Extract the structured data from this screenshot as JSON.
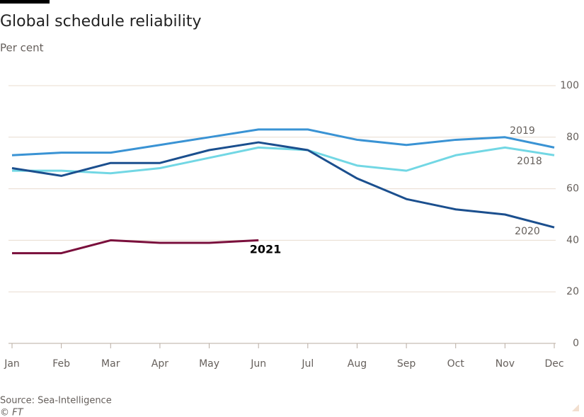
{
  "chart_data": {
    "type": "line",
    "title": "Global schedule reliability",
    "subtitle": "Per cent",
    "source": "Source: Sea-Intelligence",
    "credit": "© FT",
    "categories": [
      "Jan",
      "Feb",
      "Mar",
      "Apr",
      "May",
      "Jun",
      "Jul",
      "Aug",
      "Sep",
      "Oct",
      "Nov",
      "Dec"
    ],
    "series": [
      {
        "name": "2019",
        "color": "#3a93d4",
        "values": [
          73,
          74,
          74,
          77,
          80,
          83,
          83,
          79,
          77,
          79,
          80,
          76
        ]
      },
      {
        "name": "2018",
        "color": "#72d7e4",
        "values": [
          67,
          67,
          66,
          68,
          72,
          76,
          75,
          69,
          67,
          73,
          76,
          73
        ]
      },
      {
        "name": "2020",
        "color": "#1b4f8e",
        "values": [
          68,
          65,
          70,
          70,
          75,
          78,
          75,
          64,
          56,
          52,
          50,
          45
        ]
      },
      {
        "name": "2021",
        "color": "#7a0f3c",
        "values": [
          35,
          35,
          40,
          39,
          39,
          40,
          null,
          null,
          null,
          null,
          null,
          null
        ]
      }
    ],
    "ylim": [
      0,
      100
    ],
    "yticks": [
      0,
      20,
      40,
      60,
      80,
      100
    ],
    "grid": true
  }
}
